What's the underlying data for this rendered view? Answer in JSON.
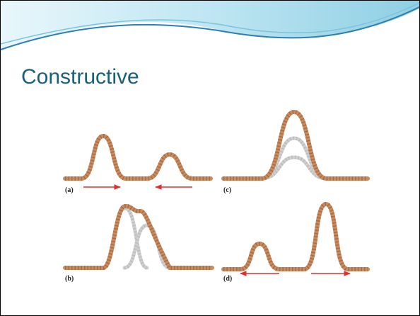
{
  "slide": {
    "title": "Constructive",
    "panels": [
      {
        "label": "(a)"
      },
      {
        "label": "(b)"
      },
      {
        "label": "(c)"
      },
      {
        "label": "(d)"
      }
    ]
  }
}
